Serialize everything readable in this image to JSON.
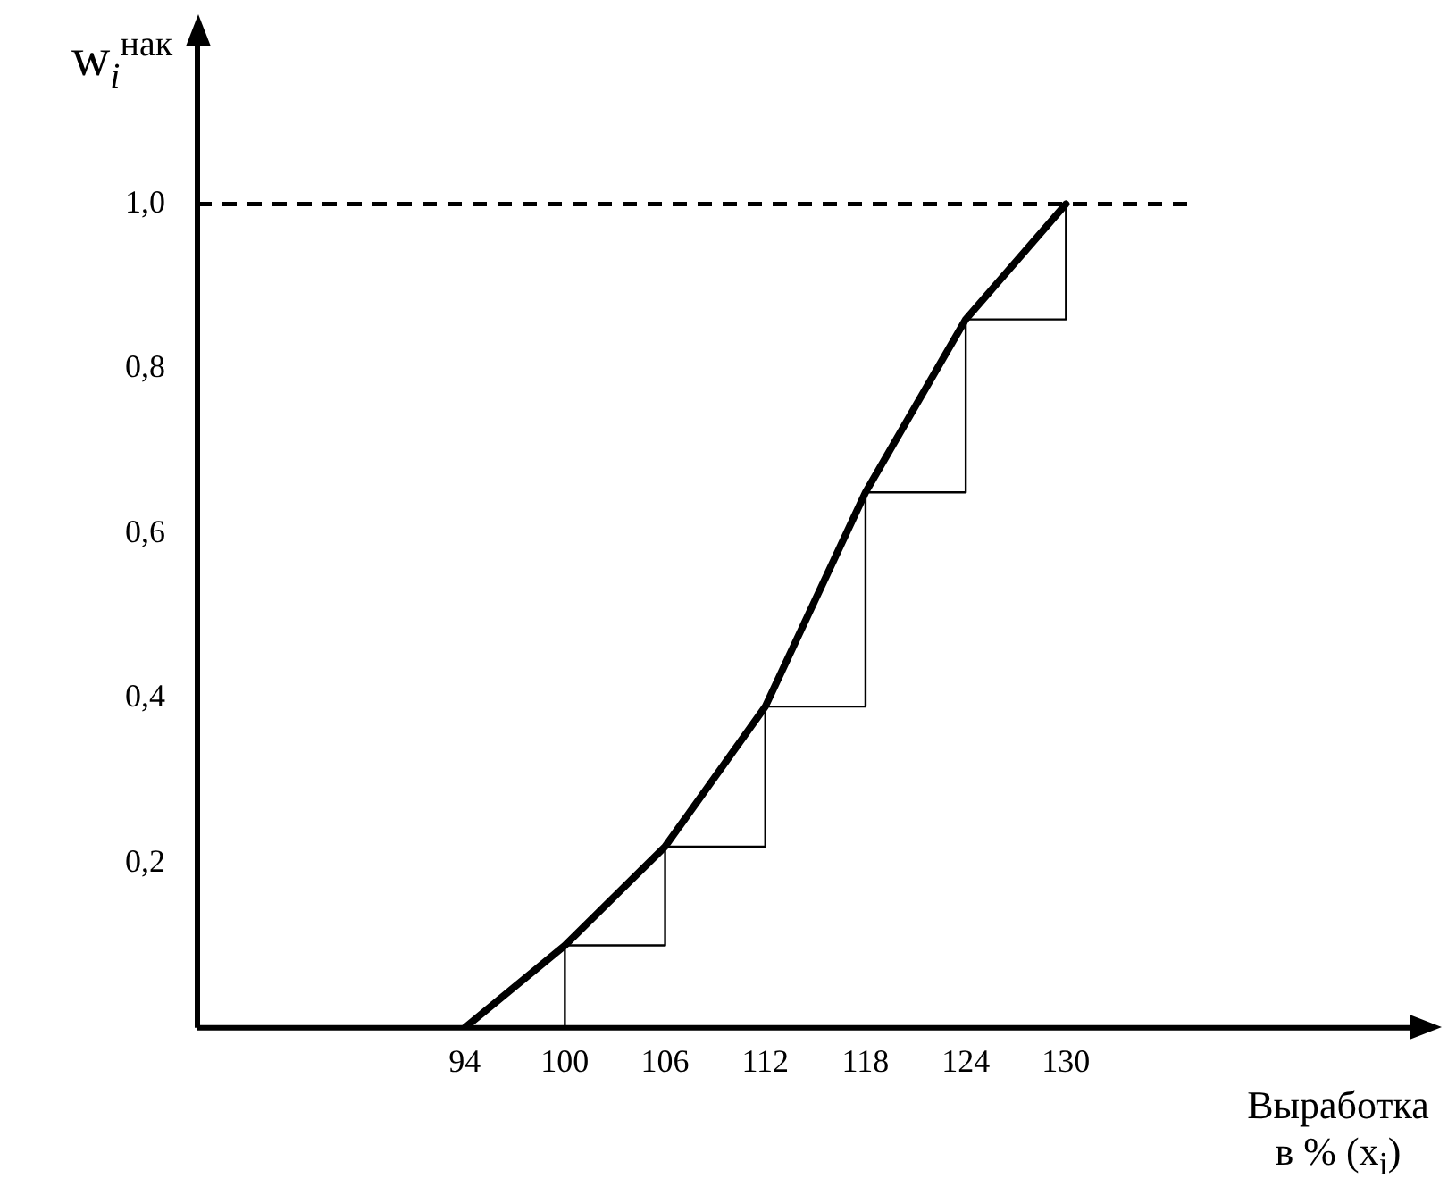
{
  "chart_data": {
    "type": "line",
    "xlabel": "Выработка в % (x$_{i}$)",
    "ylabel": "w$_{i}$$^{нак}$",
    "xlim": [
      78,
      151
    ],
    "ylim": [
      0,
      1.2
    ],
    "xticks": [
      94,
      100,
      106,
      112,
      118,
      124,
      130
    ],
    "yticks": [
      {
        "value": 0.2,
        "label": "0,2"
      },
      {
        "value": 0.4,
        "label": "0,4"
      },
      {
        "value": 0.6,
        "label": "0,6"
      },
      {
        "value": 0.8,
        "label": "0,8"
      },
      {
        "value": 1.0,
        "label": "1,0"
      }
    ],
    "grid": false,
    "legend": false,
    "marker": "none",
    "series": [
      {
        "type": "line",
        "color": "#000000",
        "x": [
          94,
          100,
          106,
          112,
          118,
          124,
          130
        ],
        "values": [
          0,
          0.1,
          0.22,
          0.39,
          0.65,
          0.86,
          1.0
        ]
      },
      {
        "type": "step",
        "color": "#000000",
        "x": [
          100,
          100,
          106,
          112,
          118,
          124,
          130
        ],
        "values": [
          0,
          0.1,
          0.22,
          0.39,
          0.65,
          0.86,
          1.0
        ]
      }
    ],
    "ref_lines": [
      {
        "axis": "y",
        "value": 1.0,
        "label": null,
        "line_style": "dashed",
        "color": "#000000"
      }
    ]
  }
}
